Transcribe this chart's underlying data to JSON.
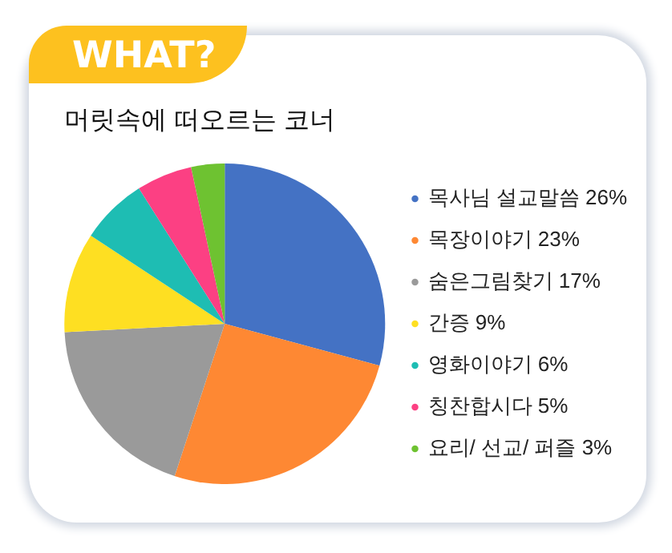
{
  "chart_data": {
    "type": "pie",
    "title": "머릿속에 떠오르는 코너",
    "annotations": [
      "WHAT?"
    ],
    "categories": [
      "목사님 설교말씀 26%",
      "목장이야기 23%",
      "숨은그림찾기 17%",
      "간증 9%",
      "영화이야기 6%",
      "칭찬합시다 5%",
      "요리/ 선교/ 퍼즐 3%"
    ],
    "values": [
      26,
      23,
      17,
      9,
      6,
      5,
      3
    ],
    "colors": [
      "#4472c4",
      "#fe8833",
      "#9a9a9a",
      "#fedf22",
      "#1ebdb3",
      "#fc4083",
      "#6ec231"
    ],
    "legend": "right"
  }
}
